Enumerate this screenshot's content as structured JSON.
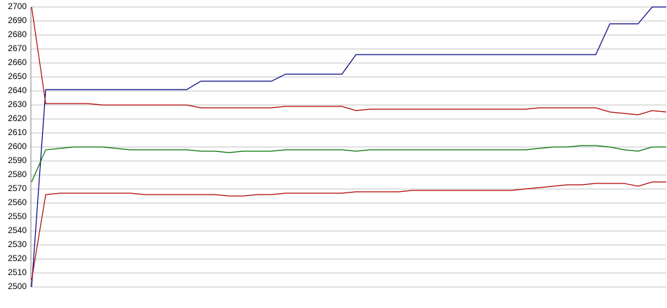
{
  "chart_data": {
    "type": "line",
    "categories": [
      null,
      null,
      null,
      null,
      null,
      null,
      null,
      null,
      null,
      null,
      null,
      null,
      null,
      null,
      null,
      null,
      null,
      null,
      null,
      null,
      null,
      null,
      null,
      null,
      null,
      null,
      null,
      null,
      null,
      null,
      null,
      null,
      null,
      null,
      null,
      null,
      null,
      null,
      null,
      null,
      null,
      null,
      null,
      null,
      null,
      null
    ],
    "series": [
      {
        "color": "#000080",
        "values": [
          2500,
          2641,
          2641,
          2641,
          2641,
          2641,
          2641,
          2641,
          2641,
          2641,
          2641,
          2641,
          2647,
          2647,
          2647,
          2647,
          2647,
          2647,
          2652,
          2652,
          2652,
          2652,
          2652,
          2666,
          2666,
          2666,
          2666,
          2666,
          2666,
          2666,
          2666,
          2666,
          2666,
          2666,
          2666,
          2666,
          2666,
          2666,
          2666,
          2666,
          2666,
          2688,
          2688,
          2688,
          2700,
          2700
        ]
      },
      {
        "color": "#b00000",
        "values": [
          2700,
          2631,
          2631,
          2631,
          2631,
          2630,
          2630,
          2630,
          2630,
          2630,
          2630,
          2630,
          2628,
          2628,
          2628,
          2628,
          2628,
          2628,
          2629,
          2629,
          2629,
          2629,
          2629,
          2626,
          2627,
          2627,
          2627,
          2627,
          2627,
          2627,
          2627,
          2627,
          2627,
          2627,
          2627,
          2627,
          2628,
          2628,
          2628,
          2628,
          2628,
          2625,
          2624,
          2623,
          2626,
          2625
        ]
      },
      {
        "color": "#007000",
        "values": [
          2575,
          2598,
          2599,
          2600,
          2600,
          2600,
          2599,
          2598,
          2598,
          2598,
          2598,
          2598,
          2597,
          2597,
          2596,
          2597,
          2597,
          2597,
          2598,
          2598,
          2598,
          2598,
          2598,
          2597,
          2598,
          2598,
          2598,
          2598,
          2598,
          2598,
          2598,
          2598,
          2598,
          2598,
          2598,
          2598,
          2599,
          2600,
          2600,
          2601,
          2601,
          2600,
          2598,
          2597,
          2600,
          2600
        ]
      },
      {
        "color": "#b00000",
        "values": [
          2505,
          2566,
          2567,
          2567,
          2567,
          2567,
          2567,
          2567,
          2566,
          2566,
          2566,
          2566,
          2566,
          2566,
          2565,
          2565,
          2566,
          2566,
          2567,
          2567,
          2567,
          2567,
          2567,
          2568,
          2568,
          2568,
          2568,
          2569,
          2569,
          2569,
          2569,
          2569,
          2569,
          2569,
          2569,
          2570,
          2571,
          2572,
          2573,
          2573,
          2574,
          2574,
          2574,
          2572,
          2575,
          2575
        ]
      }
    ],
    "ylim": [
      2500,
      2700
    ],
    "yticks": [
      2500,
      2510,
      2520,
      2530,
      2540,
      2550,
      2560,
      2570,
      2580,
      2590,
      2600,
      2610,
      2620,
      2630,
      2640,
      2650,
      2660,
      2670,
      2680,
      2690,
      2700
    ],
    "grid": true
  }
}
